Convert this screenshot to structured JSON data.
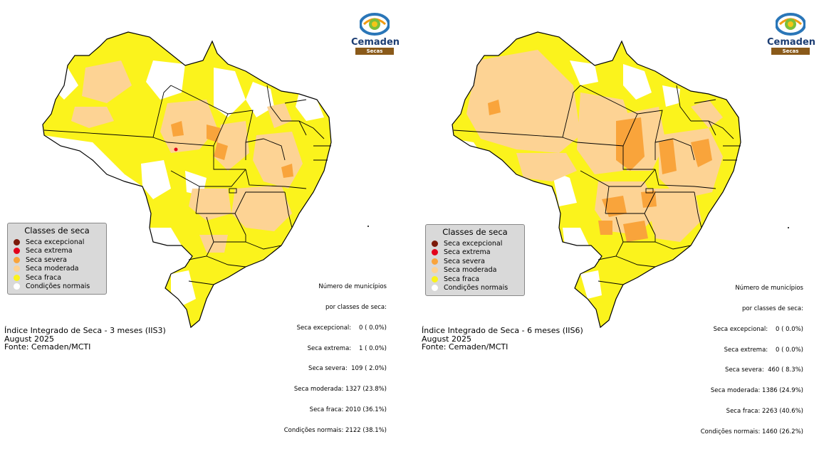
{
  "colors": {
    "excepcional": "#7b1a0a",
    "extrema": "#e3001b",
    "severa": "#f9a43b",
    "moderada": "#fdd394",
    "fraca": "#fbf31c",
    "normais": "#ffffff"
  },
  "logo": {
    "brand": "Cemaden",
    "sub": "Secas"
  },
  "legend": {
    "title": "Classes de seca",
    "items": [
      {
        "label": "Seca excepcional",
        "color": "#7b1a0a"
      },
      {
        "label": "Seca extrema",
        "color": "#e3001b"
      },
      {
        "label": "Seca severa",
        "color": "#f9a43b"
      },
      {
        "label": "Seca moderada",
        "color": "#fdd394"
      },
      {
        "label": "Seca fraca",
        "color": "#fbf31c"
      },
      {
        "label": "Condições normais",
        "color": "#ffffff"
      }
    ]
  },
  "maps": [
    {
      "stats_header": [
        "Número de municípios",
        "por classes de seca:"
      ],
      "stats": [
        "Seca excepcional:    0 ( 0.0%)",
        "Seca extrema:    1 ( 0.0%)",
        "Seca severa:  109 ( 2.0%)",
        "Seca moderada: 1327 (23.8%)",
        "Seca fraca: 2010 (36.1%)",
        "Condições normais: 2122 (38.1%)"
      ],
      "footer": [
        "Índice Integrado de Seca - 3 meses (IIS3)",
        "August 2025",
        "Fonte: Cemaden/MCTI"
      ]
    },
    {
      "stats_header": [
        "Número de municípios",
        "por classes de seca:"
      ],
      "stats": [
        "Seca excepcional:    0 ( 0.0%)",
        "Seca extrema:    0 ( 0.0%)",
        "Seca severa:  460 ( 8.3%)",
        "Seca moderada: 1386 (24.9%)",
        "Seca fraca: 2263 (40.6%)",
        "Condições normais: 1460 (26.2%)"
      ],
      "footer": [
        "Índice Integrado de Seca - 6 meses (IIS6)",
        "August 2025",
        "Fonte: Cemaden/MCTI"
      ]
    }
  ]
}
